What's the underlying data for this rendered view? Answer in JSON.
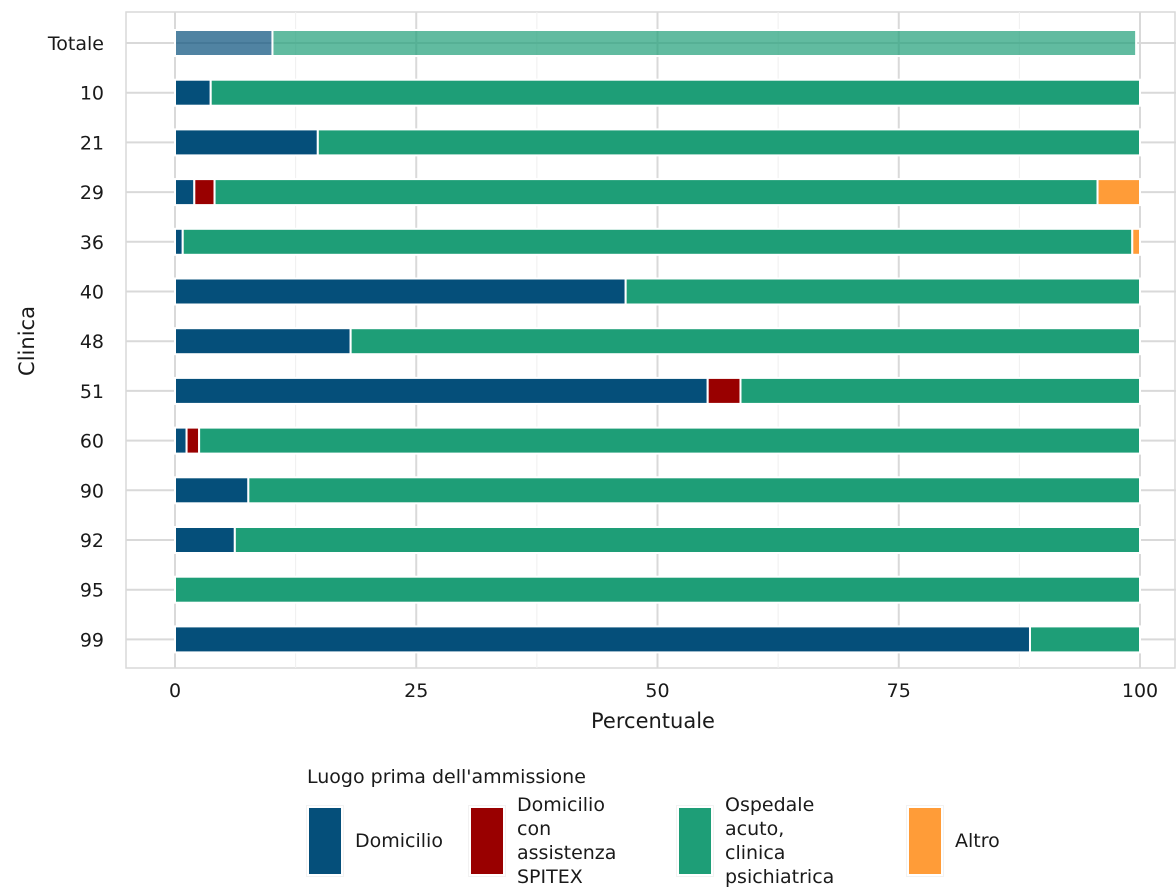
{
  "chart_data": {
    "type": "bar",
    "orientation": "horizontal",
    "stacked": true,
    "xlabel": "Percentuale",
    "ylabel": "Clinica",
    "xlim": [
      0,
      100
    ],
    "xticks": [
      "0",
      "25",
      "50",
      "75",
      "100"
    ],
    "grid": true,
    "legend_title": "Luogo prima dell'ammissione",
    "legend_position": "bottom",
    "categories": [
      "Totale",
      "10",
      "21",
      "29",
      "36",
      "40",
      "48",
      "51",
      "60",
      "90",
      "92",
      "95",
      "99"
    ],
    "highlighted_category": "Totale",
    "series": [
      {
        "name": "Domicilio",
        "color": "#054F7A",
        "values": [
          10.1,
          3.7,
          14.8,
          2.0,
          0.8,
          46.7,
          18.2,
          55.2,
          1.2,
          7.6,
          6.2,
          0.0,
          88.6
        ]
      },
      {
        "name": "Domicilio con\nassistenza\nSPITEX",
        "color": "#990000",
        "values": [
          0.0,
          0.0,
          0.0,
          2.1,
          0.0,
          0.0,
          0.0,
          3.4,
          1.3,
          0.0,
          0.0,
          0.0,
          0.0
        ]
      },
      {
        "name": "Ospedale acuto,\nclinica\npsichiatrica",
        "color": "#1E9E77",
        "values": [
          89.5,
          96.3,
          85.2,
          91.5,
          98.4,
          53.3,
          81.8,
          41.4,
          97.5,
          92.4,
          93.8,
          100.0,
          11.4
        ]
      },
      {
        "name": "Altro",
        "color": "#FF9C38",
        "values": [
          0.0,
          0.0,
          0.0,
          4.4,
          0.8,
          0.0,
          0.0,
          0.0,
          0.0,
          0.0,
          0.0,
          0.0,
          0.0
        ]
      }
    ]
  }
}
